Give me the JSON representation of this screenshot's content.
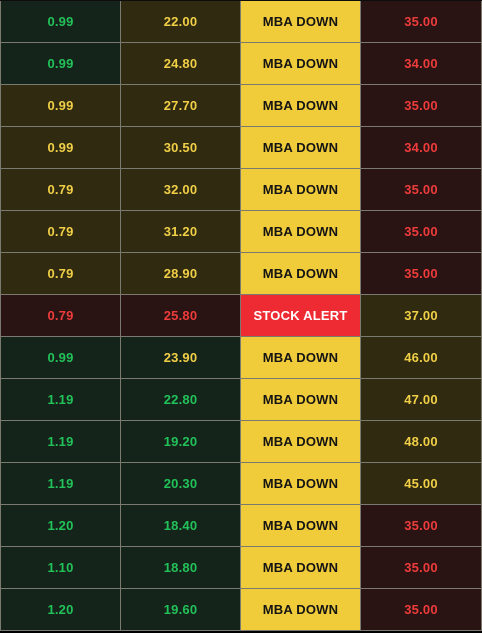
{
  "colors": {
    "green_text": "#22c25a",
    "yellow_text": "#f1cf47",
    "red_text": "#ee3b3b",
    "dark_text": "#141414",
    "white_text": "#ffffff",
    "green_bg": "#15241a",
    "olive_bg": "#2f2a10",
    "maroon_bg": "#2a1313",
    "yellow_bg": "#f0cb3a",
    "red_bg": "#ee2b32"
  },
  "rows": [
    {
      "c1": "0.99",
      "c2": "22.00",
      "status": "MBA DOWN",
      "c4": "35.00"
    },
    {
      "c1": "0.99",
      "c2": "24.80",
      "status": "MBA DOWN",
      "c4": "34.00"
    },
    {
      "c1": "0.99",
      "c2": "27.70",
      "status": "MBA DOWN",
      "c4": "35.00"
    },
    {
      "c1": "0.99",
      "c2": "30.50",
      "status": "MBA DOWN",
      "c4": "34.00"
    },
    {
      "c1": "0.79",
      "c2": "32.00",
      "status": "MBA DOWN",
      "c4": "35.00"
    },
    {
      "c1": "0.79",
      "c2": "31.20",
      "status": "MBA DOWN",
      "c4": "35.00"
    },
    {
      "c1": "0.79",
      "c2": "28.90",
      "status": "MBA DOWN",
      "c4": "35.00"
    },
    {
      "c1": "0.79",
      "c2": "25.80",
      "status": "STOCK ALERT",
      "c4": "37.00"
    },
    {
      "c1": "0.99",
      "c2": "23.90",
      "status": "MBA DOWN",
      "c4": "46.00"
    },
    {
      "c1": "1.19",
      "c2": "22.80",
      "status": "MBA DOWN",
      "c4": "47.00"
    },
    {
      "c1": "1.19",
      "c2": "19.20",
      "status": "MBA DOWN",
      "c4": "48.00"
    },
    {
      "c1": "1.19",
      "c2": "20.30",
      "status": "MBA DOWN",
      "c4": "45.00"
    },
    {
      "c1": "1.20",
      "c2": "18.40",
      "status": "MBA DOWN",
      "c4": "35.00"
    },
    {
      "c1": "1.10",
      "c2": "18.80",
      "status": "MBA DOWN",
      "c4": "35.00"
    },
    {
      "c1": "1.20",
      "c2": "19.60",
      "status": "MBA DOWN",
      "c4": "35.00"
    }
  ]
}
